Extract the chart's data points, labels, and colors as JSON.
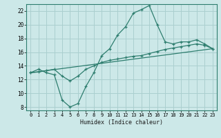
{
  "xlabel": "Humidex (Indice chaleur)",
  "bg_color": "#cce8e8",
  "line_color": "#2d7d6e",
  "grid_color": "#aacfcf",
  "xlim": [
    -0.5,
    23.5
  ],
  "ylim": [
    7.5,
    23.0
  ],
  "xticks": [
    0,
    1,
    2,
    3,
    4,
    5,
    6,
    7,
    8,
    9,
    10,
    11,
    12,
    13,
    14,
    15,
    16,
    17,
    18,
    19,
    20,
    21,
    22,
    23
  ],
  "yticks": [
    8,
    10,
    12,
    14,
    16,
    18,
    20,
    22
  ],
  "line1_x": [
    0,
    1,
    2,
    3,
    4,
    5,
    6,
    7,
    8,
    9,
    10,
    11,
    12,
    13,
    14,
    15,
    16,
    17,
    18,
    19,
    20,
    21,
    22,
    23
  ],
  "line1_y": [
    13.0,
    13.5,
    13.0,
    12.7,
    9.0,
    8.0,
    8.5,
    11.0,
    13.0,
    15.5,
    16.5,
    18.5,
    19.7,
    21.7,
    22.2,
    22.8,
    20.0,
    17.5,
    17.2,
    17.5,
    17.5,
    17.8,
    17.2,
    16.5
  ],
  "line2_x": [
    0,
    1,
    2,
    3,
    4,
    5,
    6,
    7,
    8,
    9,
    10,
    11,
    12,
    13,
    14,
    15,
    16,
    17,
    18,
    19,
    20,
    21,
    22,
    23
  ],
  "line2_y": [
    13.0,
    13.1,
    13.3,
    13.5,
    12.5,
    11.8,
    12.5,
    13.5,
    14.0,
    14.5,
    14.8,
    15.0,
    15.2,
    15.4,
    15.5,
    15.8,
    16.1,
    16.4,
    16.6,
    16.8,
    17.0,
    17.2,
    17.0,
    16.5
  ],
  "line3_x": [
    0,
    23
  ],
  "line3_y": [
    13.0,
    16.5
  ]
}
